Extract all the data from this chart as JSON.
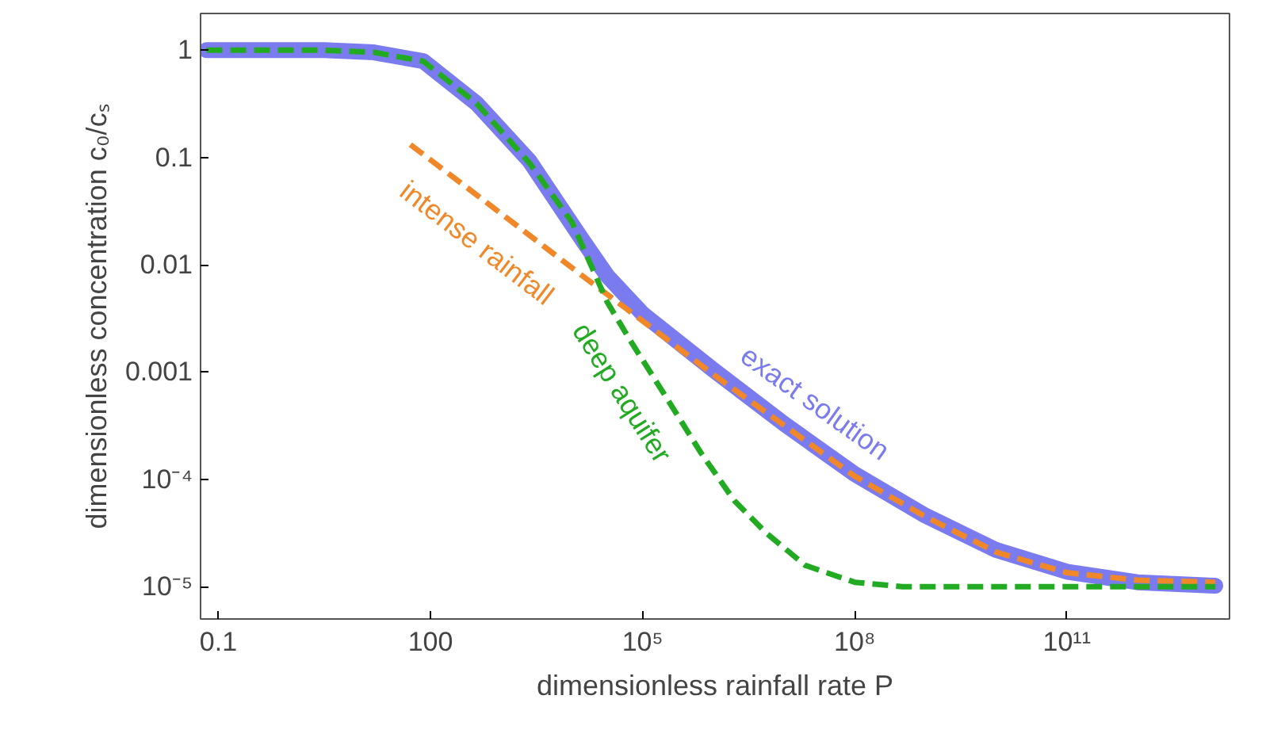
{
  "chart_data": {
    "type": "line",
    "xlabel": "dimensionless rainfall rate P",
    "ylabel": "dimensionless concentration c₀/cₛ",
    "log": "xy",
    "grid": false,
    "xlim": [
      0.056,
      20000000000000.0
    ],
    "ylim": [
      5e-06,
      2.2
    ],
    "xticks": [
      0.1,
      100,
      {
        "value": 100000,
        "label": "10⁵"
      },
      {
        "value": 100000000,
        "label": "10⁸"
      },
      {
        "value": 100000000000,
        "label": "10¹¹"
      }
    ],
    "yticks": [
      {
        "value": 1e-05,
        "label": "10⁻⁵"
      },
      {
        "value": 0.0001,
        "label": "10⁻⁴"
      },
      0.001,
      0.01,
      0.1,
      1
    ],
    "series": [
      {
        "name": "exact solution",
        "color": "#7b7bf0",
        "line_style": "solid",
        "x": [
          0.068,
          3.16,
          15.8,
          79,
          447,
          2510,
          14100,
          31600,
          100000,
          1000000,
          10000000,
          100000000,
          1000000000,
          10000000000,
          100000000000,
          1000000000000,
          12600000000000
        ],
        "values": [
          1,
          1,
          0.955,
          0.79,
          0.32,
          0.093,
          0.017,
          0.0079,
          0.0035,
          0.00105,
          0.00033,
          0.000112,
          4.6e-05,
          2.2e-05,
          1.38e-05,
          1.1e-05,
          1.02e-05
        ]
      },
      {
        "name": "intense rainfall",
        "color": "#f0882a",
        "line_style": "dashed",
        "x": [
          52,
          1000,
          14100,
          100000,
          1000000,
          10000000,
          100000000,
          1000000000,
          10000000000,
          100000000000,
          1000000000000,
          12600000000000
        ],
        "values": [
          0.132,
          0.03,
          0.0079,
          0.003,
          0.00095,
          0.00032,
          0.000107,
          4.5e-05,
          2.1e-05,
          1.35e-05,
          1.15e-05,
          1.1e-05
        ]
      },
      {
        "name": "deep aquifer",
        "color": "#22aa22",
        "line_style": "dashed",
        "x": [
          0.068,
          3.16,
          15.8,
          79,
          447,
          2510,
          10000,
          31600,
          66000,
          200000,
          680000,
          2000000,
          5500000,
          20000000,
          100000000,
          470000000,
          12600000000000
        ],
        "values": [
          1,
          1,
          0.955,
          0.79,
          0.32,
          0.089,
          0.025,
          0.0045,
          0.002,
          0.00063,
          0.000174,
          6.3e-05,
          3.2e-05,
          1.58e-05,
          1.1e-05,
          1e-05,
          1e-05
        ]
      }
    ]
  }
}
